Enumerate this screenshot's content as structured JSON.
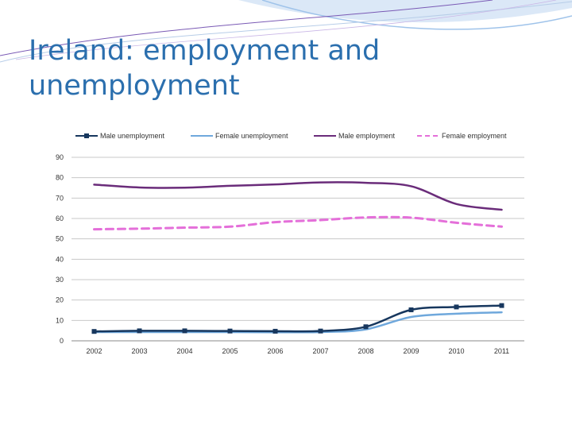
{
  "slide": {
    "title": "Ireland: employment and unemployment"
  },
  "colors": {
    "title": "#2b6fae",
    "male_unemployment": "#17375e",
    "female_unemployment": "#6fa8dc",
    "male_employment": "#6a2c7a",
    "female_employment": "#e46fd9",
    "gridline": "#c8c8c8",
    "axis": "#888888"
  },
  "chart_data": {
    "type": "line",
    "title": "",
    "xlabel": "",
    "ylabel": "",
    "categories": [
      "2002",
      "2003",
      "2004",
      "2005",
      "2006",
      "2007",
      "2008",
      "2009",
      "2010",
      "2011"
    ],
    "ylim": [
      0,
      90
    ],
    "yticks": [
      0,
      10,
      20,
      30,
      40,
      50,
      60,
      70,
      80,
      90
    ],
    "grid": true,
    "legend_position": "top",
    "series": [
      {
        "name": "Male  unemployment",
        "values": [
          4.6,
          4.9,
          4.9,
          4.8,
          4.7,
          4.8,
          6.9,
          15.2,
          16.6,
          17.3
        ],
        "color": "#17375e",
        "style": "solid-marker"
      },
      {
        "name": "Female  unemployment",
        "values": [
          4.3,
          4.3,
          4.3,
          4.3,
          4.2,
          4.3,
          5.6,
          11.7,
          13.3,
          14.0
        ],
        "color": "#6fa8dc",
        "style": "solid"
      },
      {
        "name": "Male employment",
        "values": [
          76.6,
          75.2,
          75.1,
          76.0,
          76.7,
          77.7,
          77.5,
          75.8,
          67.1,
          64.3
        ],
        "color": "#6a2c7a",
        "style": "solid"
      },
      {
        "name": "Female employment",
        "values": [
          54.7,
          55.0,
          55.5,
          56.0,
          58.2,
          59.2,
          60.5,
          60.4,
          57.9,
          56.0
        ],
        "color": "#e46fd9",
        "style": "dashed"
      }
    ]
  }
}
